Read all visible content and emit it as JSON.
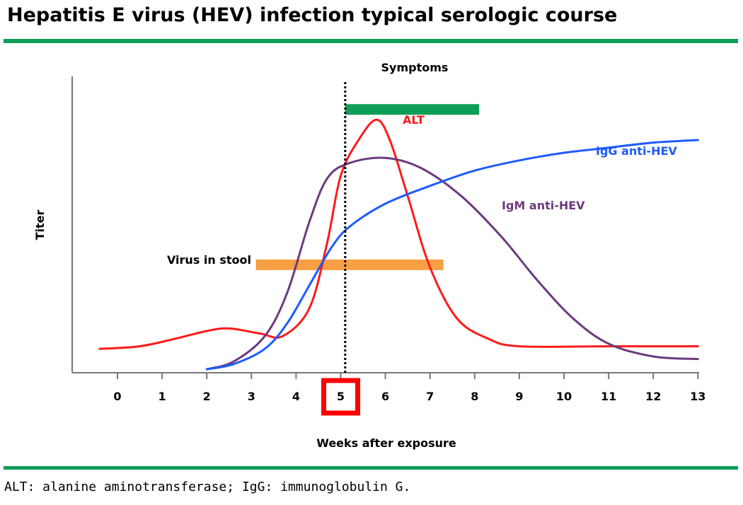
{
  "header": {
    "title": "Hepatitis E virus (HEV) infection typical serologic course"
  },
  "footer": {
    "footnote": "ALT: alanine aminotransferase; IgG: immunoglobulin G."
  },
  "colors": {
    "rule": "#0f9d58",
    "alt": "#ff1a1a",
    "igg": "#1e5bff",
    "igm": "#6b3a7d",
    "stool": "#f7a043",
    "symptoms": "#0f9d58",
    "highlight": "#ff0000"
  },
  "chart_data": {
    "type": "line",
    "title": "Hepatitis E virus (HEV) infection typical serologic course",
    "xlabel": "Weeks after exposure",
    "ylabel": "Titer",
    "xlim": [
      -0.9,
      13
    ],
    "ylim": [
      0,
      1
    ],
    "xticks": [
      0,
      1,
      2,
      3,
      4,
      5,
      6,
      7,
      8,
      9,
      10,
      11,
      12,
      13
    ],
    "highlighted_tick": 5,
    "marker_line": {
      "x": 5.1,
      "style": "dotted"
    },
    "series": [
      {
        "name": "ALT",
        "color": "#ff1a1a",
        "points": [
          [
            -0.4,
            0.08
          ],
          [
            0.5,
            0.09
          ],
          [
            1.3,
            0.12
          ],
          [
            2,
            0.15
          ],
          [
            2.5,
            0.16
          ],
          [
            3.2,
            0.14
          ],
          [
            3.7,
            0.13
          ],
          [
            4.3,
            0.24
          ],
          [
            4.7,
            0.5
          ],
          [
            5,
            0.76
          ],
          [
            5.4,
            0.9
          ],
          [
            5.8,
            0.98
          ],
          [
            6.1,
            0.9
          ],
          [
            6.5,
            0.68
          ],
          [
            7,
            0.4
          ],
          [
            7.6,
            0.2
          ],
          [
            8.3,
            0.12
          ],
          [
            9,
            0.09
          ],
          [
            11,
            0.09
          ],
          [
            13,
            0.09
          ]
        ]
      },
      {
        "name": "IgM anti-HEV",
        "color": "#6b3a7d",
        "points": [
          [
            2,
            0
          ],
          [
            2.6,
            0.03
          ],
          [
            3.3,
            0.13
          ],
          [
            3.8,
            0.3
          ],
          [
            4.3,
            0.58
          ],
          [
            4.7,
            0.75
          ],
          [
            5.2,
            0.81
          ],
          [
            6,
            0.83
          ],
          [
            6.8,
            0.79
          ],
          [
            7.7,
            0.68
          ],
          [
            8.6,
            0.52
          ],
          [
            9.4,
            0.35
          ],
          [
            10.2,
            0.2
          ],
          [
            11,
            0.1
          ],
          [
            12,
            0.05
          ],
          [
            13,
            0.04
          ]
        ]
      },
      {
        "name": "IgG anti-HEV",
        "color": "#1e5bff",
        "points": [
          [
            2,
            0
          ],
          [
            2.6,
            0.02
          ],
          [
            3.3,
            0.08
          ],
          [
            3.8,
            0.18
          ],
          [
            4.3,
            0.33
          ],
          [
            4.8,
            0.48
          ],
          [
            5.2,
            0.56
          ],
          [
            6,
            0.65
          ],
          [
            7,
            0.72
          ],
          [
            8,
            0.78
          ],
          [
            9,
            0.82
          ],
          [
            10,
            0.85
          ],
          [
            11,
            0.87
          ],
          [
            12,
            0.89
          ],
          [
            13,
            0.9
          ]
        ]
      }
    ],
    "bars": [
      {
        "name": "Symptoms",
        "color": "#0f9d58",
        "x_start": 5.1,
        "x_end": 8.1,
        "level": 1.02
      },
      {
        "name": "Virus in stool",
        "color": "#f7a043",
        "x_start": 3.1,
        "x_end": 7.3,
        "level": 0.41
      }
    ]
  }
}
